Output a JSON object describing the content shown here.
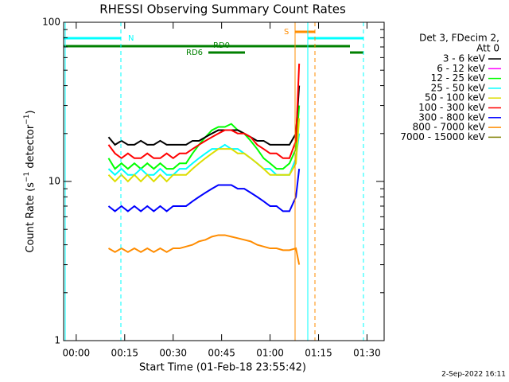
{
  "chart_data": {
    "type": "line",
    "title": "RHESSI Observing Summary Count Rates",
    "x_label": "Start Time (01-Feb-18 23:55:42)",
    "y_label": [
      "Count Rate (s",
      "−1",
      " detector",
      "−1",
      ")"
    ],
    "legend_header": [
      "Det 3, FDecim 2,",
      "Att 0"
    ],
    "footer": "2-Sep-2022 16:11",
    "annotations": [
      "N",
      "RD0",
      "RD6",
      "S"
    ],
    "log_y": true,
    "xlim": [
      -3.9,
      95.3
    ],
    "xticks": [
      {
        "value": 0,
        "label": "00:00"
      },
      {
        "value": 15,
        "label": "00:15"
      },
      {
        "value": 30,
        "label": "00:30"
      },
      {
        "value": 45,
        "label": "00:45"
      },
      {
        "value": 60,
        "label": "01:00"
      },
      {
        "value": 75,
        "label": "01:15"
      },
      {
        "value": 90,
        "label": "01:30"
      }
    ],
    "ylim": [
      1,
      100
    ],
    "yticks": [
      1,
      10,
      100
    ],
    "x": [
      10,
      12,
      14,
      16,
      18,
      20,
      22,
      24,
      26,
      28,
      30,
      32,
      34,
      36,
      38,
      40,
      42,
      44,
      46,
      48,
      50,
      52,
      54,
      56,
      58,
      60,
      62,
      64,
      66,
      68,
      69
    ],
    "series": [
      {
        "name": "3 - 6 keV",
        "color": "#000000",
        "values": [
          19,
          17,
          18,
          17,
          17,
          18,
          17,
          17,
          18,
          17,
          17,
          17,
          17,
          18,
          18,
          19,
          20,
          21,
          21,
          21,
          21,
          20,
          19,
          18,
          18,
          17,
          17,
          17,
          17,
          20,
          40
        ]
      },
      {
        "name": "6 - 12 keV",
        "color": "#ff00ff",
        "values": [
          null,
          null,
          null,
          null,
          null,
          null,
          null,
          null,
          null,
          null,
          null,
          null,
          null,
          null,
          null,
          null,
          null,
          null,
          null,
          null,
          null,
          null,
          null,
          null,
          null,
          null,
          null,
          null,
          null,
          null,
          null
        ]
      },
      {
        "name": "12 - 25 keV",
        "color": "#00ff00",
        "values": [
          14,
          12,
          13,
          12,
          13,
          12,
          13,
          12,
          13,
          12,
          12,
          13,
          13,
          15,
          17,
          19,
          21,
          22,
          22,
          23,
          21,
          20,
          18,
          16,
          14,
          13,
          12,
          12,
          13,
          16,
          30
        ]
      },
      {
        "name": "25 - 50 keV",
        "color": "#00ffff",
        "values": [
          12,
          11,
          12,
          11,
          11,
          12,
          11,
          11,
          12,
          11,
          11,
          12,
          12,
          13,
          14,
          15,
          16,
          16,
          17,
          16,
          16,
          15,
          14,
          13,
          12,
          12,
          11,
          11,
          11,
          14,
          20
        ]
      },
      {
        "name": "50 - 100 keV",
        "color": "#dddd00",
        "values": [
          11,
          10,
          11,
          10,
          11,
          10,
          11,
          10,
          11,
          10,
          11,
          11,
          11,
          12,
          13,
          14,
          15,
          16,
          16,
          16,
          15,
          15,
          14,
          13,
          12,
          11,
          11,
          11,
          11,
          13,
          25
        ]
      },
      {
        "name": "100 - 300 keV",
        "color": "#ff0000",
        "values": [
          17,
          15,
          14,
          15,
          14,
          14,
          15,
          14,
          14,
          15,
          14,
          15,
          15,
          16,
          17,
          18,
          19,
          20,
          21,
          21,
          20,
          20,
          19,
          17,
          16,
          15,
          15,
          14,
          14,
          18,
          55
        ]
      },
      {
        "name": "300 - 800 keV",
        "color": "#0000ff",
        "values": [
          7,
          6.5,
          7,
          6.5,
          7,
          6.5,
          7,
          6.5,
          7,
          6.5,
          7,
          7,
          7,
          7.5,
          8,
          8.5,
          9,
          9.5,
          9.5,
          9.5,
          9,
          9,
          8.5,
          8,
          7.5,
          7,
          7,
          6.5,
          6.5,
          8,
          12
        ]
      },
      {
        "name": "800 - 7000 keV",
        "color": "#ff8c00",
        "values": [
          3.8,
          3.6,
          3.8,
          3.6,
          3.8,
          3.6,
          3.8,
          3.6,
          3.8,
          3.6,
          3.8,
          3.8,
          3.9,
          4,
          4.2,
          4.3,
          4.5,
          4.6,
          4.6,
          4.5,
          4.4,
          4.3,
          4.2,
          4,
          3.9,
          3.8,
          3.8,
          3.7,
          3.7,
          3.8,
          3
        ]
      },
      {
        "name": "7000 - 15000 keV",
        "color": "#808000",
        "values": [
          null,
          null,
          null,
          null,
          null,
          null,
          null,
          null,
          null,
          null,
          null,
          null,
          null,
          null,
          null,
          null,
          null,
          null,
          null,
          null,
          null,
          null,
          null,
          null,
          null,
          null,
          null,
          null,
          null,
          null,
          null
        ]
      }
    ]
  }
}
